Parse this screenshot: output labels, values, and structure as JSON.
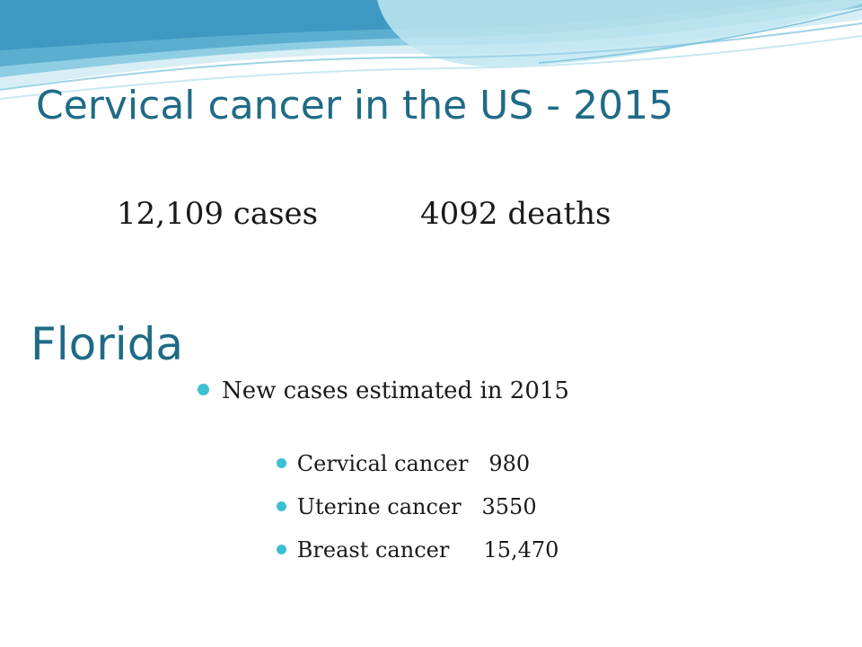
{
  "slide": {
    "title": "Cervical cancer in the US - 2015",
    "us_stats": {
      "cases": "12,109 cases",
      "deaths": "4092 deaths"
    },
    "subheading": "Florida",
    "bullets": {
      "main": "New cases estimated in 2015",
      "items": [
        {
          "label": "Cervical cancer   980"
        },
        {
          "label": "Uterine cancer   3550"
        },
        {
          "label": "Breast cancer     15,470"
        }
      ]
    }
  },
  "colors": {
    "title": "#1f6b86",
    "bullet": "#3cc0d0",
    "wave_dark": "#5aaed0",
    "wave_light": "#bfe6f0",
    "text": "#1a1a1a"
  }
}
